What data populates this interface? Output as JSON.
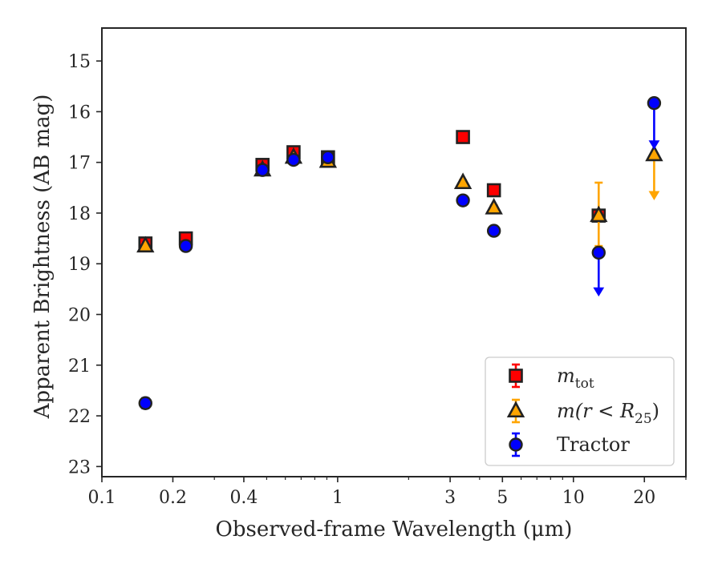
{
  "chart_data": {
    "type": "scatter",
    "title": "",
    "xlabel": "Observed-frame Wavelength (μm)",
    "ylabel": "Apparent Brightness (AB mag)",
    "x_scale": "log",
    "xlim": [
      0.1,
      30
    ],
    "ylim": [
      23.2,
      14.35
    ],
    "y_inverted": true,
    "grid": false,
    "legend_placement": "lower right",
    "x_tick_labels": [
      "0.1",
      "0.2",
      "0.4",
      "1",
      "3",
      "5",
      "10",
      "20"
    ],
    "y_tick_labels": [
      "15",
      "16",
      "17",
      "18",
      "19",
      "20",
      "21",
      "22",
      "23"
    ],
    "series": [
      {
        "name": "m_tot",
        "legend_label": {
          "base": "m",
          "sub": "tot"
        },
        "marker": "square",
        "color": "#ff0000",
        "edge_color": "#222222",
        "points": [
          {
            "x": 0.153,
            "y": 18.6,
            "err": 0.1
          },
          {
            "x": 0.227,
            "y": 18.5,
            "err": 0.1
          },
          {
            "x": 0.48,
            "y": 17.05,
            "err": 0.08
          },
          {
            "x": 0.65,
            "y": 16.8,
            "err": 0.08
          },
          {
            "x": 0.91,
            "y": 16.9,
            "err": 0.08
          },
          {
            "x": 3.4,
            "y": 16.5,
            "err": 0.05
          },
          {
            "x": 4.6,
            "y": 17.55,
            "err": 0.05
          },
          {
            "x": 12.8,
            "y": 18.05,
            "err": 0.1
          }
        ]
      },
      {
        "name": "m(r < R_25)",
        "legend_label": {
          "prefix": "m(r < R",
          "sub": "25",
          "suffix": ")"
        },
        "marker": "triangle",
        "color": "#ffa500",
        "edge_color": "#222222",
        "points": [
          {
            "x": 0.153,
            "y": 18.65,
            "err": 0.05
          },
          {
            "x": 0.48,
            "y": 17.15,
            "err": 0.05
          },
          {
            "x": 0.65,
            "y": 16.9,
            "err": 0.05
          },
          {
            "x": 0.91,
            "y": 16.98,
            "err": 0.05
          },
          {
            "x": 3.4,
            "y": 17.4,
            "err": 0.05
          },
          {
            "x": 4.6,
            "y": 17.9,
            "err": 0.05
          },
          {
            "x": 12.8,
            "y": 18.05,
            "err_upper": 0.65,
            "err_lower": 0.6
          },
          {
            "x": 22.0,
            "y": 16.85,
            "upper_limit_to": 17.7
          }
        ]
      },
      {
        "name": "Tractor",
        "marker": "circle",
        "color": "#0000ff",
        "edge_color": "#222222",
        "points": [
          {
            "x": 0.153,
            "y": 21.75,
            "err": 0.1
          },
          {
            "x": 0.227,
            "y": 18.65,
            "err": 0.08
          },
          {
            "x": 0.48,
            "y": 17.15,
            "err": 0.05
          },
          {
            "x": 0.65,
            "y": 16.95,
            "err": 0.05
          },
          {
            "x": 0.91,
            "y": 16.9,
            "err": 0.05
          },
          {
            "x": 3.4,
            "y": 17.75,
            "err": 0.05
          },
          {
            "x": 4.6,
            "y": 18.35,
            "err": 0.05
          },
          {
            "x": 12.8,
            "y": 18.78,
            "upper_limit_to": 19.6
          },
          {
            "x": 22.0,
            "y": 15.83,
            "upper_limit_to": 16.7
          }
        ]
      }
    ]
  }
}
